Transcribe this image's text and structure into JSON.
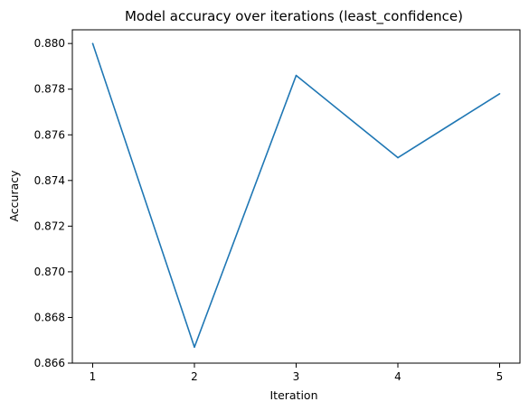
{
  "chart_data": {
    "type": "line",
    "title": "Model accuracy over iterations (least_confidence)",
    "xlabel": "Iteration",
    "ylabel": "Accuracy",
    "x": [
      1,
      2,
      3,
      4,
      5
    ],
    "series": [
      {
        "values": [
          0.88,
          0.8667,
          0.8786,
          0.875,
          0.8778
        ],
        "color": "#1f77b4"
      }
    ],
    "xlim": [
      0.8,
      5.2
    ],
    "ylim": [
      0.866,
      0.8806
    ],
    "xticks": [
      "1",
      "2",
      "3",
      "4",
      "5"
    ],
    "yticks": [
      "0.866",
      "0.868",
      "0.870",
      "0.872",
      "0.874",
      "0.876",
      "0.878",
      "0.880"
    ],
    "grid": false,
    "legend": "none"
  }
}
